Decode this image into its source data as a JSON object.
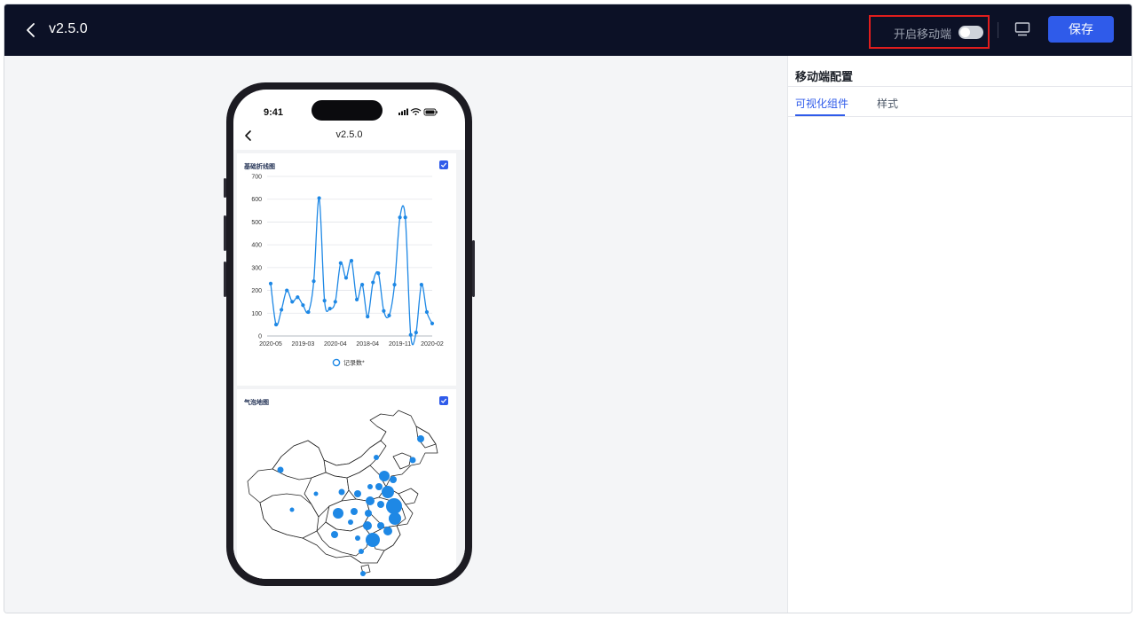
{
  "header": {
    "title": "v2.5.0",
    "mobile_toggle_label": "开启移动端",
    "mobile_toggle_on": false,
    "save_label": "保存"
  },
  "phone": {
    "status_time": "9:41",
    "nav_title": "v2.5.0",
    "line_card": {
      "title": "基础折线图",
      "checked": true,
      "chart_data": {
        "type": "line",
        "title": "基础折线图",
        "x_tick_labels": [
          "2020-05",
          "2019-03",
          "2020-04",
          "2018-04",
          "2019-11",
          "2020-02"
        ],
        "y_tick_labels": [
          "0",
          "100",
          "200",
          "300",
          "400",
          "500",
          "600",
          "700"
        ],
        "ylim": [
          0,
          700
        ],
        "legend": "top-bottom-center",
        "grid": true,
        "series": [
          {
            "name": "记录数*",
            "values": [
              230,
              50,
              115,
              200,
              150,
              170,
              135,
              105,
              240,
              605,
              155,
              120,
              150,
              320,
              255,
              330,
              160,
              225,
              85,
              235,
              275,
              110,
              90,
              225,
              520,
              520,
              5,
              15,
              225,
              105,
              55
            ]
          }
        ]
      }
    },
    "map_card": {
      "title": "气泡地图",
      "checked": true
    }
  },
  "panel": {
    "title": "移动端配置",
    "tabs": [
      {
        "label": "可视化组件",
        "active": true
      },
      {
        "label": "样式",
        "active": false
      }
    ]
  },
  "colors": {
    "header_bg": "#0c1126",
    "accent": "#2f5bea",
    "line": "#1e88e5",
    "highlight_box": "#e01d1d"
  }
}
